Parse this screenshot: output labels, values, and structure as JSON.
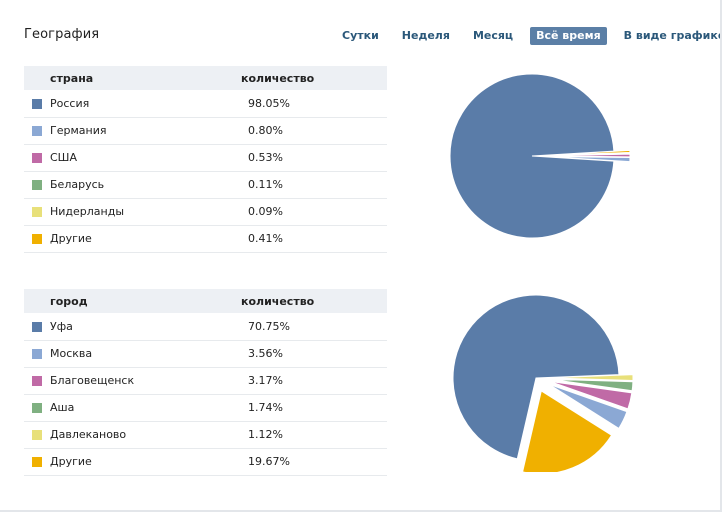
{
  "header": {
    "title": "География"
  },
  "tabs": [
    {
      "label": "Сутки",
      "active": false
    },
    {
      "label": "Неделя",
      "active": false
    },
    {
      "label": "Месяц",
      "active": false
    },
    {
      "label": "Всё время",
      "active": true
    },
    {
      "label": "В виде графиков",
      "active": false
    }
  ],
  "countries": {
    "col_name": "страна",
    "col_value": "количество",
    "rows": [
      {
        "name": "Россия",
        "value": "98.05%",
        "color": "#5a7ca8"
      },
      {
        "name": "Германия",
        "value": "0.80%",
        "color": "#8ba8d4"
      },
      {
        "name": "США",
        "value": "0.53%",
        "color": "#c06aa6"
      },
      {
        "name": "Беларусь",
        "value": "0.11%",
        "color": "#7fb081"
      },
      {
        "name": "Нидерланды",
        "value": "0.09%",
        "color": "#e8e07a"
      },
      {
        "name": "Другие",
        "value": "0.41%",
        "color": "#f0b000"
      }
    ]
  },
  "cities": {
    "col_name": "город",
    "col_value": "количество",
    "rows": [
      {
        "name": "Уфа",
        "value": "70.75%",
        "color": "#5a7ca8"
      },
      {
        "name": "Москва",
        "value": "3.56%",
        "color": "#8ba8d4"
      },
      {
        "name": "Благовещенск",
        "value": "3.17%",
        "color": "#c06aa6"
      },
      {
        "name": "Аша",
        "value": "1.74%",
        "color": "#7fb081"
      },
      {
        "name": "Давлеканово",
        "value": "1.12%",
        "color": "#e8e07a"
      },
      {
        "name": "Другие",
        "value": "19.67%",
        "color": "#f0b000"
      }
    ]
  },
  "chart_data": [
    {
      "type": "pie",
      "title": "страна",
      "categories": [
        "Россия",
        "Германия",
        "США",
        "Беларусь",
        "Нидерланды",
        "Другие"
      ],
      "values": [
        98.05,
        0.8,
        0.53,
        0.11,
        0.09,
        0.41
      ],
      "colors": [
        "#5a7ca8",
        "#8ba8d4",
        "#c06aa6",
        "#7fb081",
        "#e8e07a",
        "#f0b000"
      ]
    },
    {
      "type": "pie",
      "title": "город",
      "categories": [
        "Уфа",
        "Москва",
        "Благовещенск",
        "Аша",
        "Давлеканово",
        "Другие"
      ],
      "values": [
        70.75,
        3.56,
        3.17,
        1.74,
        1.12,
        19.67
      ],
      "colors": [
        "#5a7ca8",
        "#8ba8d4",
        "#c06aa6",
        "#7fb081",
        "#e8e07a",
        "#f0b000"
      ]
    }
  ]
}
